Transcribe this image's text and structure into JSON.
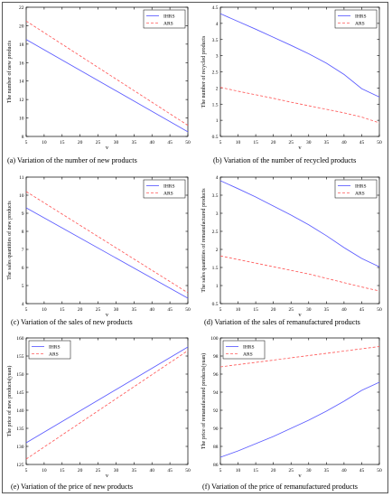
{
  "captions": [
    "(a)   Variation of the number of new products",
    "(b)   Variation of the number of recycled products",
    "(c) Variation of the sales of new products",
    "(d) Variation of the sales of remanufactured products",
    "(e) Variation of the price of new products",
    "(f) Variation of the price of remanufactured products"
  ],
  "colors": {
    "IHRS": "#5b5bff",
    "ARS": "#ff5a5a"
  },
  "chart_data": [
    {
      "type": "line",
      "xlabel": "v",
      "ylabel": "The number of new products",
      "xlim": [
        5,
        50
      ],
      "ylim": [
        8,
        22
      ],
      "xticks": [
        5,
        10,
        15,
        20,
        25,
        30,
        35,
        40,
        45,
        50
      ],
      "yticks": [
        8,
        10,
        12,
        14,
        16,
        18,
        20,
        22
      ],
      "legend_position": "top-right",
      "series": [
        {
          "name": "IHRS",
          "style": "solid",
          "x": [
            5,
            50
          ],
          "y": [
            18.5,
            8.5
          ]
        },
        {
          "name": "ARS",
          "style": "dashed",
          "x": [
            5,
            50
          ],
          "y": [
            20.5,
            9.2
          ]
        }
      ]
    },
    {
      "type": "line",
      "xlabel": "v",
      "ylabel": "The number of recycled products",
      "xlim": [
        5,
        50
      ],
      "ylim": [
        0.5,
        4.5
      ],
      "xticks": [
        5,
        10,
        15,
        20,
        25,
        30,
        35,
        40,
        45,
        50
      ],
      "yticks": [
        0.5,
        1,
        1.5,
        2,
        2.5,
        3,
        3.5,
        4,
        4.5
      ],
      "legend_position": "top-right",
      "series": [
        {
          "name": "IHRS",
          "style": "solid",
          "x": [
            5,
            10,
            15,
            20,
            25,
            30,
            35,
            40,
            45,
            50
          ],
          "y": [
            4.3,
            4.06,
            3.82,
            3.57,
            3.32,
            3.06,
            2.77,
            2.42,
            1.98,
            1.72
          ]
        },
        {
          "name": "ARS",
          "style": "dashed",
          "x": [
            5,
            10,
            15,
            20,
            25,
            30,
            35,
            40,
            45,
            50
          ],
          "y": [
            2.02,
            1.9,
            1.79,
            1.68,
            1.56,
            1.45,
            1.34,
            1.23,
            1.1,
            0.92
          ]
        }
      ]
    },
    {
      "type": "line",
      "xlabel": "v",
      "ylabel": "The sales quantities of new products",
      "xlim": [
        5,
        50
      ],
      "ylim": [
        4,
        11
      ],
      "xticks": [
        5,
        10,
        15,
        20,
        25,
        30,
        35,
        40,
        45,
        50
      ],
      "yticks": [
        4,
        5,
        6,
        7,
        8,
        9,
        10,
        11
      ],
      "legend_position": "top-right",
      "series": [
        {
          "name": "IHRS",
          "style": "solid",
          "x": [
            5,
            50
          ],
          "y": [
            9.3,
            4.3
          ]
        },
        {
          "name": "ARS",
          "style": "dashed",
          "x": [
            5,
            50
          ],
          "y": [
            10.2,
            4.6
          ]
        }
      ]
    },
    {
      "type": "line",
      "xlabel": "v",
      "ylabel": "The sales quantities of remanufactured products",
      "xlim": [
        5,
        50
      ],
      "ylim": [
        0.5,
        4
      ],
      "xticks": [
        5,
        10,
        15,
        20,
        25,
        30,
        35,
        40,
        45,
        50
      ],
      "yticks": [
        0.5,
        1,
        1.5,
        2,
        2.5,
        3,
        3.5,
        4
      ],
      "legend_position": "top-right",
      "series": [
        {
          "name": "IHRS",
          "style": "solid",
          "x": [
            5,
            10,
            15,
            20,
            25,
            30,
            35,
            40,
            45,
            50
          ],
          "y": [
            3.9,
            3.68,
            3.45,
            3.2,
            2.95,
            2.68,
            2.38,
            2.05,
            1.75,
            1.52
          ]
        },
        {
          "name": "ARS",
          "style": "dashed",
          "x": [
            5,
            10,
            15,
            20,
            25,
            30,
            35,
            40,
            45,
            50
          ],
          "y": [
            1.82,
            1.72,
            1.62,
            1.52,
            1.42,
            1.32,
            1.2,
            1.08,
            0.96,
            0.85
          ]
        }
      ]
    },
    {
      "type": "line",
      "xlabel": "v",
      "ylabel": "The price of new products(yuan)",
      "xlim": [
        5,
        50
      ],
      "ylim": [
        125,
        160
      ],
      "xticks": [
        5,
        10,
        15,
        20,
        25,
        30,
        35,
        40,
        45,
        50
      ],
      "yticks": [
        125,
        130,
        135,
        140,
        145,
        150,
        155,
        160
      ],
      "legend_position": "top-left",
      "series": [
        {
          "name": "IHRS",
          "style": "solid",
          "x": [
            5,
            50
          ],
          "y": [
            131,
            157.5
          ]
        },
        {
          "name": "ARS",
          "style": "dashed",
          "x": [
            5,
            50
          ],
          "y": [
            126.5,
            156.5
          ]
        }
      ]
    },
    {
      "type": "line",
      "xlabel": "v",
      "ylabel": "The price of remanufactured products(yuan)",
      "xlim": [
        5,
        50
      ],
      "ylim": [
        86,
        100
      ],
      "xticks": [
        5,
        10,
        15,
        20,
        25,
        30,
        35,
        40,
        45,
        50
      ],
      "yticks": [
        86,
        88,
        90,
        92,
        94,
        96,
        98,
        100
      ],
      "legend_position": "top-left",
      "series": [
        {
          "name": "IHRS",
          "style": "solid",
          "x": [
            5,
            10,
            15,
            20,
            25,
            30,
            35,
            40,
            45,
            50
          ],
          "y": [
            86.8,
            87.5,
            88.3,
            89.1,
            90.0,
            90.9,
            91.9,
            93.0,
            94.2,
            95.1
          ]
        },
        {
          "name": "ARS",
          "style": "dashed",
          "x": [
            5,
            10,
            15,
            20,
            25,
            30,
            35,
            40,
            45,
            50
          ],
          "y": [
            96.8,
            97.05,
            97.3,
            97.55,
            97.8,
            98.05,
            98.3,
            98.55,
            98.8,
            99.05
          ]
        }
      ]
    }
  ]
}
